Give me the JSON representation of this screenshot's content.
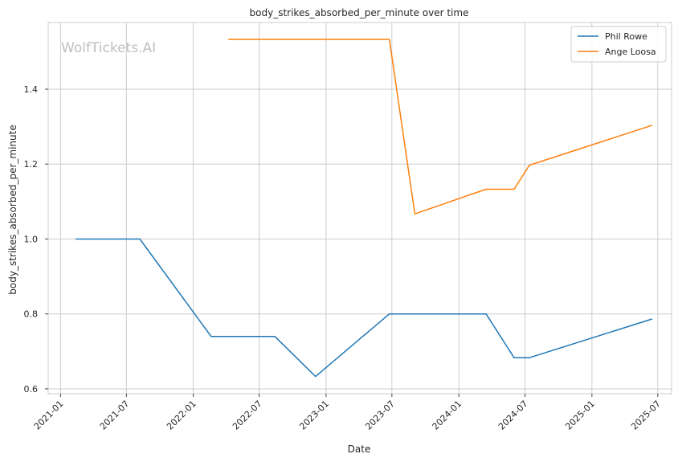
{
  "chart_data": {
    "type": "line",
    "title": "body_strikes_absorbed_per_minute over time",
    "xlabel": "Date",
    "ylabel": "body_strikes_absorbed_per_minute",
    "watermark": "WolfTickets.AI",
    "xlim": [
      "2020-11-28",
      "2025-08-08"
    ],
    "ylim": [
      0.587,
      1.578
    ],
    "x_ticks": [
      "2021-01",
      "2021-07",
      "2022-01",
      "2022-07",
      "2023-01",
      "2023-07",
      "2024-01",
      "2024-07",
      "2025-01",
      "2025-07"
    ],
    "y_ticks": [
      0.6,
      0.8,
      1.0,
      1.2,
      1.4
    ],
    "y_tick_labels": [
      "0.6",
      "0.8",
      "1.0",
      "1.2",
      "1.4"
    ],
    "grid": true,
    "legend_position": "top-right",
    "series": [
      {
        "name": "Phil Rowe",
        "color": "#1f77b4",
        "points": [
          [
            "2021-02-13",
            1.0
          ],
          [
            "2021-08-07",
            1.0
          ],
          [
            "2022-02-19",
            0.74
          ],
          [
            "2022-08-13",
            0.74
          ],
          [
            "2022-12-03",
            0.633
          ],
          [
            "2023-06-24",
            0.8
          ],
          [
            "2024-03-16",
            0.8
          ],
          [
            "2024-06-01",
            0.683
          ],
          [
            "2024-07-13",
            0.683
          ],
          [
            "2025-06-14",
            0.786
          ]
        ]
      },
      {
        "name": "Ange Loosa",
        "color": "#ff7f0e",
        "points": [
          [
            "2022-04-09",
            1.533
          ],
          [
            "2023-06-24",
            1.533
          ],
          [
            "2023-09-02",
            1.067
          ],
          [
            "2024-03-16",
            1.133
          ],
          [
            "2024-06-01",
            1.133
          ],
          [
            "2024-07-13",
            1.197
          ],
          [
            "2025-06-14",
            1.303
          ]
        ]
      }
    ]
  }
}
